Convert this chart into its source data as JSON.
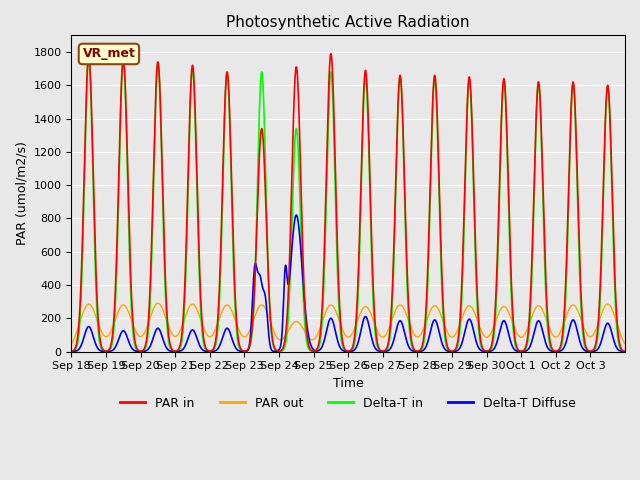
{
  "title": "Photosynthetic Active Radiation",
  "xlabel": "Time",
  "ylabel": "PAR (umol/m2/s)",
  "legend_label": "VR_met",
  "ylim": [
    0,
    1900
  ],
  "yticks": [
    0,
    200,
    400,
    600,
    800,
    1000,
    1200,
    1400,
    1600,
    1800
  ],
  "xtick_labels": [
    "Sep 18",
    "Sep 19",
    "Sep 20",
    "Sep 21",
    "Sep 22",
    "Sep 23",
    "Sep 24",
    "Sep 25",
    "Sep 26",
    "Sep 27",
    "Sep 28",
    "Sep 29",
    "Sep 30",
    "Oct 1",
    "Oct 2",
    "Oct 3"
  ],
  "colors": {
    "PAR_in": "#ff0000",
    "PAR_out": "#ffa500",
    "Delta_T_in": "#00ff00",
    "Delta_T_Diffuse": "#0000ff"
  },
  "background_color": "#e8e8e8",
  "axes_background": "#e8e8e8",
  "grid_color": "#ffffff",
  "num_days": 16,
  "day_peaks": {
    "PAR_in": [
      1780,
      1760,
      1740,
      1720,
      1680,
      1340,
      1710,
      1790,
      1690,
      1660,
      1660,
      1650,
      1640,
      1620,
      1620,
      1600
    ],
    "PAR_out": [
      285,
      280,
      290,
      285,
      280,
      280,
      180,
      280,
      270,
      280,
      275,
      275,
      270,
      275,
      280,
      285
    ],
    "Delta_T_in": [
      1760,
      1740,
      1730,
      1700,
      1670,
      1680,
      1340,
      1680,
      1650,
      1650,
      1640,
      1630,
      1620,
      1610,
      1605,
      1595
    ],
    "Delta_T_Diffuse": [
      150,
      125,
      140,
      130,
      140,
      480,
      820,
      200,
      210,
      185,
      190,
      195,
      185,
      185,
      190,
      170
    ]
  }
}
